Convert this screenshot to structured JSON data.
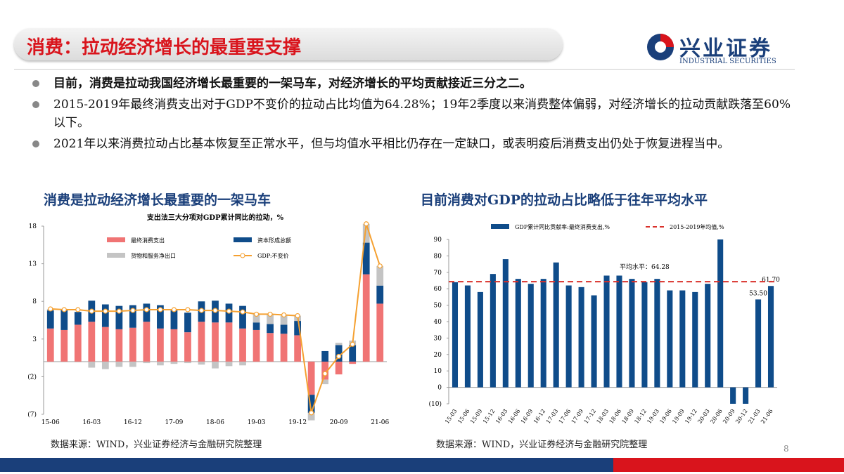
{
  "header": {
    "title": "消费：拉动经济增长的最重要支撑",
    "logo_cn": "兴业证券",
    "logo_en": "INDUSTRIAL SECURITIES"
  },
  "bullets": [
    "目前，消费是拉动我国经济增长最重要的一架马车，对经济增长的平均贡献接近三分之二。",
    "2015-2019年最终消费支出对于GDP不变价的拉动占比均值为64.28%；19年2季度以来消费整体偏弱，对经济增长的拉动贡献跌落至60%以下。",
    "2021年以来消费拉动占比基本恢复至正常水平，但与均值水平相比仍存在一定缺口，或表明疫后消费支出仍处于恢复进程当中。"
  ],
  "panels": [
    {
      "heading": "消费是拉动经济增长最重要的一架马车",
      "source": "数据来源：WIND，兴业证券经济与金融研究院整理"
    },
    {
      "heading": "目前消费对GDP的拉动占比略低于往年平均水平",
      "source": "数据来源：WIND，兴业证券经济与金融研究院整理"
    }
  ],
  "page_number": "8",
  "chart_data": [
    {
      "type": "bar",
      "stacked": true,
      "grid": false,
      "title": "支出法三大分项对GDP累计同比的拉动，%",
      "categories": [
        "15-06",
        null,
        null,
        "16-03",
        null,
        null,
        "16-12",
        null,
        null,
        "17-09",
        null,
        null,
        "18-06",
        null,
        null,
        "19-03",
        null,
        null,
        "19-12",
        null,
        null,
        "20-09",
        null,
        null,
        "21-06"
      ],
      "ylim": [
        -7,
        18
      ],
      "yticks": [
        18,
        13,
        8,
        3,
        {
          "value": -2,
          "label": "(2)"
        },
        {
          "value": -7,
          "label": "(7)"
        }
      ],
      "series": [
        {
          "name": "最终消费支出",
          "type": "bar",
          "color": "#f07474",
          "values": [
            4.4,
            4.2,
            4.9,
            5.3,
            4.6,
            4.3,
            4.5,
            5.3,
            4.4,
            4.3,
            3.9,
            5.3,
            5.2,
            5.2,
            4.4,
            4.2,
            3.8,
            3.7,
            3.5,
            -4.4,
            -2.4,
            -1.7,
            -0.3,
            11.6,
            7.7
          ]
        },
        {
          "name": "资本形成总额",
          "type": "bar",
          "color": "#0f4c8a",
          "values": [
            2.4,
            2.7,
            1.7,
            2.8,
            3.0,
            3.1,
            3.0,
            2.4,
            3.1,
            2.5,
            2.6,
            2.7,
            2.9,
            2.5,
            3.0,
            1.0,
            1.2,
            1.2,
            1.9,
            -2.4,
            1.4,
            2.2,
            2.2,
            4.2,
            2.4
          ]
        },
        {
          "name": "货物和服务净出口",
          "type": "bar",
          "color": "#c4c4c4",
          "values": [
            0.2,
            0.1,
            -0.1,
            -0.8,
            -1.0,
            -0.7,
            -0.7,
            -0.2,
            -0.5,
            -0.3,
            -0.2,
            -0.4,
            -0.9,
            -0.6,
            -0.5,
            1.2,
            1.3,
            1.2,
            0.7,
            -1.0,
            -0.6,
            0.3,
            0.6,
            2.5,
            2.6
          ]
        },
        {
          "name": "GDP:不变价",
          "type": "line",
          "color": "#f5a030",
          "values": [
            7.0,
            6.9,
            6.9,
            6.7,
            6.7,
            6.7,
            6.8,
            6.9,
            6.9,
            6.9,
            6.9,
            6.8,
            6.8,
            6.7,
            6.6,
            6.3,
            6.3,
            6.2,
            6.1,
            -6.8,
            -1.6,
            0.7,
            2.3,
            18.3,
            12.7
          ]
        }
      ]
    },
    {
      "type": "bar",
      "stacked": false,
      "grid": false,
      "categories": [
        "15-03",
        "15-06",
        "15-09",
        "15-12",
        "16-03",
        "16-06",
        "16-09",
        "16-12",
        "17-03",
        "17-06",
        "17-09",
        "17-12",
        "18-03",
        "18-06",
        "18-09",
        "18-12",
        "19-03",
        "19-06",
        "19-09",
        "19-12",
        "20-03",
        "20-06",
        "20-09",
        "20-12",
        "21-03",
        "21-06"
      ],
      "ylim": [
        -10,
        90
      ],
      "yticks": [
        90,
        80,
        70,
        60,
        50,
        40,
        30,
        20,
        10,
        0,
        {
          "value": -10,
          "label": "(10)"
        }
      ],
      "series": [
        {
          "name": "GDP累计同比贡献率:最终消费支出,%",
          "type": "bar",
          "color": "#0f4c8a",
          "values": [
            64,
            62,
            58,
            69,
            78,
            66,
            63,
            66,
            76,
            62,
            61,
            56,
            68,
            68,
            66,
            64,
            66,
            59,
            59,
            58,
            63,
            90,
            -10,
            -10,
            53.5,
            61.7
          ],
          "value_labels": [
            null,
            null,
            null,
            null,
            null,
            null,
            null,
            null,
            null,
            null,
            null,
            null,
            null,
            null,
            null,
            null,
            null,
            null,
            null,
            null,
            null,
            null,
            null,
            null,
            "53.50",
            "61.70"
          ]
        }
      ],
      "reference_line": {
        "name": "2015-2019年均值,%",
        "value": 64.28,
        "color": "#d9312b",
        "annotation": "平均水平：64.28"
      }
    }
  ]
}
